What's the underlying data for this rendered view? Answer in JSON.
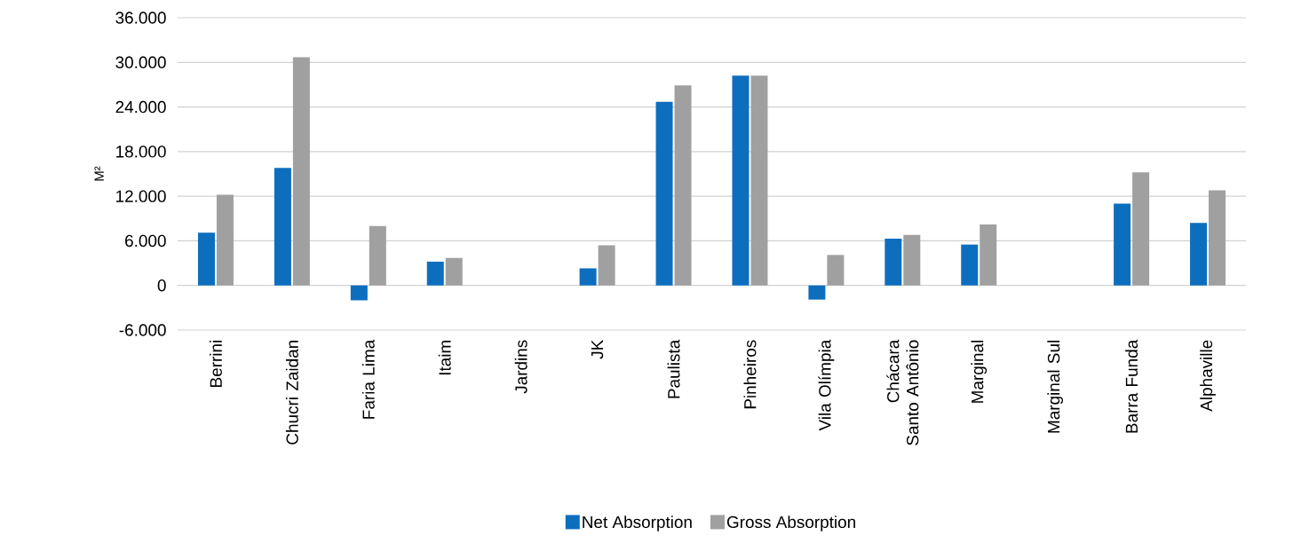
{
  "chart_data": {
    "type": "bar",
    "ylabel": "M²",
    "categories": [
      "Berrini",
      "Chucri Zaidan",
      "Faria Lima",
      "Itaim",
      "Jardins",
      "JK",
      "Paulista",
      "Pinheiros",
      "Vila Olímpia",
      "Chácara Santo Antônio",
      "Marginal",
      "Marginal Sul",
      "Barra Funda",
      "Alphaville"
    ],
    "series": [
      {
        "name": "Net Absorption",
        "color": "#0e6ebe",
        "values": [
          7100,
          15800,
          -2000,
          3200,
          0,
          2300,
          24700,
          28200,
          -1900,
          6300,
          5500,
          0,
          11000,
          8400
        ]
      },
      {
        "name": "Gross Absorption",
        "color": "#a0a0a0",
        "values": [
          12200,
          30700,
          8000,
          3700,
          0,
          5400,
          26900,
          28200,
          4100,
          6800,
          8200,
          0,
          15200,
          12800
        ]
      }
    ],
    "ylim": [
      -6000,
      36000
    ],
    "yticks": [
      {
        "value": -6000,
        "label": "-6.000"
      },
      {
        "value": 0,
        "label": "0"
      },
      {
        "value": 6000,
        "label": "6.000"
      },
      {
        "value": 12000,
        "label": "12.000"
      },
      {
        "value": 18000,
        "label": "18.000"
      },
      {
        "value": 24000,
        "label": "24.000"
      },
      {
        "value": 30000,
        "label": "30.000"
      },
      {
        "value": 36000,
        "label": "36.000"
      }
    ],
    "grid": "y",
    "legend": "bottom"
  }
}
